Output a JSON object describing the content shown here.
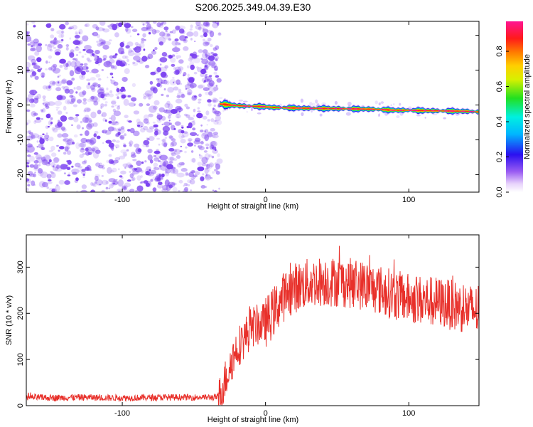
{
  "title": "S206.2025.349.04.39.E30",
  "colors": {
    "background": "#ffffff",
    "snr_line": "#e8302a",
    "speckle": "#7a3ff0",
    "frame": "#000000"
  },
  "chart_data": [
    {
      "type": "heatmap",
      "xlabel": "Height of straight line (km)",
      "ylabel": "Frequency (Hz)",
      "xlim": [
        -167,
        149
      ],
      "ylim": [
        -25,
        24
      ],
      "xticks": [
        -100,
        0,
        100
      ],
      "xtick_labels": [
        "-100",
        "0",
        "100"
      ],
      "yticks": [
        -20,
        -10,
        0,
        10,
        20
      ],
      "ytick_labels": [
        "-20",
        "-10",
        "0",
        "10",
        "20"
      ],
      "noise_region_x": [
        -167,
        -32
      ],
      "signal_region_x": [
        -32,
        149
      ],
      "signal_ridge": {
        "x": [
          -32,
          -25,
          -15,
          -5,
          0,
          5,
          15,
          25,
          40,
          60,
          75,
          80,
          85,
          90,
          95,
          100,
          110,
          125,
          140,
          149
        ],
        "freq": [
          0.3,
          0.0,
          -0.3,
          -0.4,
          -0.5,
          -0.7,
          -0.8,
          -0.9,
          -1.0,
          -1.1,
          -1.2,
          -1.3,
          -1.4,
          -1.5,
          -1.5,
          -1.5,
          -1.6,
          -1.7,
          -1.8,
          -2.0
        ]
      },
      "grid": false,
      "colorbar": {
        "label": "Normalized spectral amplitude",
        "ticks": [
          0.0,
          0.2,
          0.4,
          0.6,
          0.8
        ],
        "tick_labels": [
          "0.0",
          "0.2",
          "0.4",
          "0.6",
          "0.8"
        ],
        "range": [
          0.0,
          0.97
        ],
        "colormap": "rainbow (white-violet-blue-cyan-green-yellow-red-magenta)"
      }
    },
    {
      "type": "line",
      "xlabel": "Height of straight line (km)",
      "ylabel": "SNR (10 * v/v)",
      "xlim": [
        -167,
        149
      ],
      "ylim": [
        0,
        370
      ],
      "xticks": [
        -100,
        0,
        100
      ],
      "xtick_labels": [
        "-100",
        "0",
        "100"
      ],
      "yticks": [
        0,
        100,
        200,
        300
      ],
      "ytick_labels": [
        "0",
        "100",
        "200",
        "300"
      ],
      "grid": false,
      "series": [
        {
          "x": [
            -167,
            -150,
            -130,
            -110,
            -90,
            -70,
            -50,
            -35,
            -32,
            -25,
            -20,
            -15,
            -10,
            -5,
            0,
            5,
            10,
            15,
            20,
            25,
            30,
            40,
            50,
            60,
            70,
            80,
            90,
            100,
            110,
            120,
            130,
            140,
            149
          ],
          "values": [
            18,
            17,
            18,
            17,
            17,
            18,
            18,
            18,
            20,
            85,
            125,
            145,
            170,
            175,
            180,
            200,
            225,
            245,
            255,
            260,
            265,
            270,
            268,
            265,
            260,
            250,
            240,
            232,
            228,
            225,
            218,
            210,
            205
          ]
        }
      ]
    }
  ]
}
